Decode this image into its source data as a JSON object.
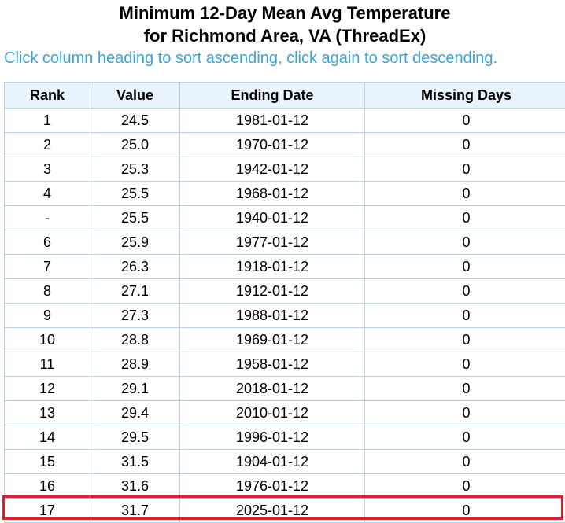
{
  "header": {
    "title_line1": "Minimum 12-Day Mean Avg Temperature",
    "title_line2": "for Richmond Area, VA (ThreadEx)",
    "hint": "Click column heading to sort ascending, click again to sort descending."
  },
  "table": {
    "columns": [
      "Rank",
      "Value",
      "Ending Date",
      "Missing Days"
    ],
    "rows": [
      [
        "1",
        "24.5",
        "1981-01-12",
        "0"
      ],
      [
        "2",
        "25.0",
        "1970-01-12",
        "0"
      ],
      [
        "3",
        "25.3",
        "1942-01-12",
        "0"
      ],
      [
        "4",
        "25.5",
        "1968-01-12",
        "0"
      ],
      [
        "-",
        "25.5",
        "1940-01-12",
        "0"
      ],
      [
        "6",
        "25.9",
        "1977-01-12",
        "0"
      ],
      [
        "7",
        "26.3",
        "1918-01-12",
        "0"
      ],
      [
        "8",
        "27.1",
        "1912-01-12",
        "0"
      ],
      [
        "9",
        "27.3",
        "1988-01-12",
        "0"
      ],
      [
        "10",
        "28.8",
        "1969-01-12",
        "0"
      ],
      [
        "11",
        "28.9",
        "1958-01-12",
        "0"
      ],
      [
        "12",
        "29.1",
        "2018-01-12",
        "0"
      ],
      [
        "13",
        "29.4",
        "2010-01-12",
        "0"
      ],
      [
        "14",
        "29.5",
        "1996-01-12",
        "0"
      ],
      [
        "15",
        "31.5",
        "1904-01-12",
        "0"
      ],
      [
        "16",
        "31.6",
        "1976-01-12",
        "0"
      ],
      [
        "17",
        "31.7",
        "2025-01-12",
        "0"
      ]
    ]
  }
}
